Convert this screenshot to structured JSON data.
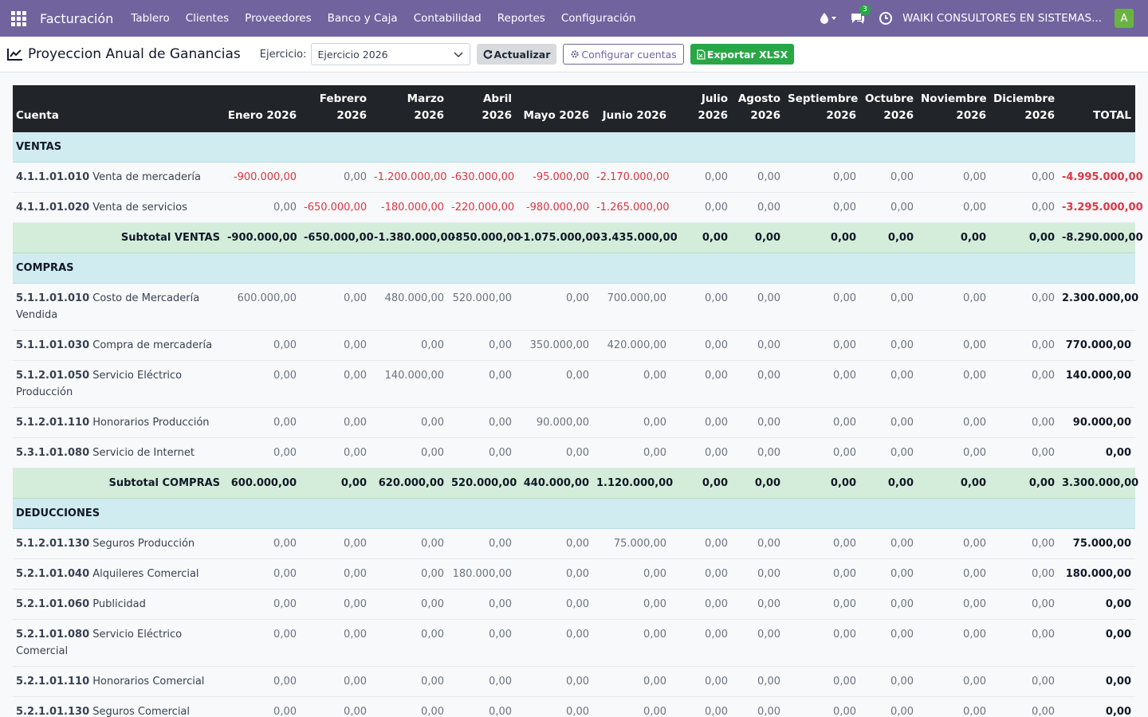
{
  "navbar": {
    "brand": "Facturación",
    "menu": [
      "Tablero",
      "Clientes",
      "Proveedores",
      "Banco y Caja",
      "Contabilidad",
      "Reportes",
      "Configuración"
    ],
    "messages_count": "3",
    "company": "WAIKI CONSULTORES EN SISTEMAS...",
    "avatar_letter": "A"
  },
  "control": {
    "title": "Proyeccion Anual de Ganancias",
    "fiscal_label": "Ejercicio:",
    "fiscal_value": "Ejercicio 2026",
    "refresh_label": "Actualizar",
    "configure_label": "Configurar cuentas",
    "export_label": "Exportar XLSX"
  },
  "table": {
    "headers": [
      "Cuenta",
      "Enero 2026",
      "Febrero 2026",
      "Marzo 2026",
      "Abril 2026",
      "Mayo 2026",
      "Junio 2026",
      "Julio 2026",
      "Agosto 2026",
      "Septiembre 2026",
      "Octubre 2026",
      "Noviembre 2026",
      "Diciembre 2026",
      "TOTAL"
    ],
    "sections": [
      {
        "name": "VENTAS",
        "rows": [
          {
            "code": "4.1.1.01.010",
            "name": "Venta de mercadería",
            "values": [
              "-900.000,00",
              "0,00",
              "-1.200.000,00",
              "-630.000,00",
              "-95.000,00",
              "-2.170.000,00",
              "0,00",
              "0,00",
              "0,00",
              "0,00",
              "0,00",
              "0,00"
            ],
            "total": "-4.995.000,00"
          },
          {
            "code": "4.1.1.01.020",
            "name": "Venta de servicios",
            "values": [
              "0,00",
              "-650.000,00",
              "-180.000,00",
              "-220.000,00",
              "-980.000,00",
              "-1.265.000,00",
              "0,00",
              "0,00",
              "0,00",
              "0,00",
              "0,00",
              "0,00"
            ],
            "total": "-3.295.000,00"
          }
        ],
        "subtotal": {
          "label": "Subtotal VENTAS",
          "values": [
            "-900.000,00",
            "-650.000,00",
            "-1.380.000,00",
            "-850.000,00",
            "-1.075.000,00",
            "-3.435.000,00",
            "0,00",
            "0,00",
            "0,00",
            "0,00",
            "0,00",
            "0,00"
          ],
          "total": "-8.290.000,00"
        }
      },
      {
        "name": "COMPRAS",
        "rows": [
          {
            "code": "5.1.1.01.010",
            "name": "Costo de Mercadería Vendida",
            "values": [
              "600.000,00",
              "0,00",
              "480.000,00",
              "520.000,00",
              "0,00",
              "700.000,00",
              "0,00",
              "0,00",
              "0,00",
              "0,00",
              "0,00",
              "0,00"
            ],
            "total": "2.300.000,00"
          },
          {
            "code": "5.1.1.01.030",
            "name": "Compra de mercadería",
            "values": [
              "0,00",
              "0,00",
              "0,00",
              "0,00",
              "350.000,00",
              "420.000,00",
              "0,00",
              "0,00",
              "0,00",
              "0,00",
              "0,00",
              "0,00"
            ],
            "total": "770.000,00"
          },
          {
            "code": "5.1.2.01.050",
            "name": "Servicio Eléctrico Producción",
            "values": [
              "0,00",
              "0,00",
              "140.000,00",
              "0,00",
              "0,00",
              "0,00",
              "0,00",
              "0,00",
              "0,00",
              "0,00",
              "0,00",
              "0,00"
            ],
            "total": "140.000,00"
          },
          {
            "code": "5.1.2.01.110",
            "name": "Honorarios Producción",
            "values": [
              "0,00",
              "0,00",
              "0,00",
              "0,00",
              "90.000,00",
              "0,00",
              "0,00",
              "0,00",
              "0,00",
              "0,00",
              "0,00",
              "0,00"
            ],
            "total": "90.000,00"
          },
          {
            "code": "5.3.1.01.080",
            "name": "Servicio de Internet",
            "values": [
              "0,00",
              "0,00",
              "0,00",
              "0,00",
              "0,00",
              "0,00",
              "0,00",
              "0,00",
              "0,00",
              "0,00",
              "0,00",
              "0,00"
            ],
            "total": "0,00"
          }
        ],
        "subtotal": {
          "label": "Subtotal COMPRAS",
          "values": [
            "600.000,00",
            "0,00",
            "620.000,00",
            "520.000,00",
            "440.000,00",
            "1.120.000,00",
            "0,00",
            "0,00",
            "0,00",
            "0,00",
            "0,00",
            "0,00"
          ],
          "total": "3.300.000,00"
        }
      },
      {
        "name": "DEDUCCIONES",
        "rows": [
          {
            "code": "5.1.2.01.130",
            "name": "Seguros Producción",
            "values": [
              "0,00",
              "0,00",
              "0,00",
              "0,00",
              "0,00",
              "75.000,00",
              "0,00",
              "0,00",
              "0,00",
              "0,00",
              "0,00",
              "0,00"
            ],
            "total": "75.000,00"
          },
          {
            "code": "5.2.1.01.040",
            "name": "Alquileres Comercial",
            "values": [
              "0,00",
              "0,00",
              "0,00",
              "180.000,00",
              "0,00",
              "0,00",
              "0,00",
              "0,00",
              "0,00",
              "0,00",
              "0,00",
              "0,00"
            ],
            "total": "180.000,00"
          },
          {
            "code": "5.2.1.01.060",
            "name": "Publicidad",
            "values": [
              "0,00",
              "0,00",
              "0,00",
              "0,00",
              "0,00",
              "0,00",
              "0,00",
              "0,00",
              "0,00",
              "0,00",
              "0,00",
              "0,00"
            ],
            "total": "0,00"
          },
          {
            "code": "5.2.1.01.080",
            "name": "Servicio Eléctrico Comercial",
            "values": [
              "0,00",
              "0,00",
              "0,00",
              "0,00",
              "0,00",
              "0,00",
              "0,00",
              "0,00",
              "0,00",
              "0,00",
              "0,00",
              "0,00"
            ],
            "total": "0,00"
          },
          {
            "code": "5.2.1.01.110",
            "name": "Honorarios Comercial",
            "values": [
              "0,00",
              "0,00",
              "0,00",
              "0,00",
              "0,00",
              "0,00",
              "0,00",
              "0,00",
              "0,00",
              "0,00",
              "0,00",
              "0,00"
            ],
            "total": "0,00"
          },
          {
            "code": "5.2.1.01.130",
            "name": "Seguros Comercial",
            "values": [
              "0,00",
              "0,00",
              "0,00",
              "0,00",
              "0,00",
              "0,00",
              "0,00",
              "0,00",
              "0,00",
              "0,00",
              "0,00",
              "0,00"
            ],
            "total": "0,00"
          }
        ]
      }
    ]
  },
  "colors": {
    "navbar": "#71639e",
    "negative": "#dc3545",
    "section_bg": "#d1ecf1",
    "subtotal_bg": "#d4edda",
    "header_bg": "#212529",
    "export_button": "#28a745"
  },
  "icons": [
    "apps-grid-icon",
    "water-drop-icon",
    "chat-icon",
    "clock-icon",
    "line-chart-icon",
    "chevron-down-icon",
    "refresh-icon",
    "gear-icon",
    "excel-file-icon"
  ]
}
